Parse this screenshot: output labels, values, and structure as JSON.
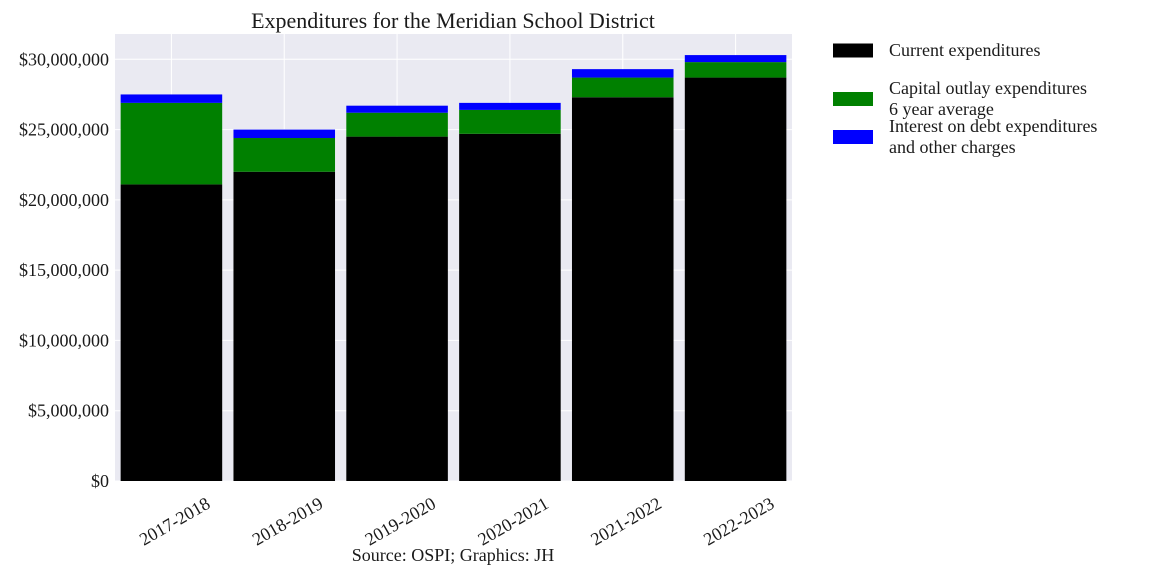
{
  "chart_data": {
    "type": "bar",
    "stacked": true,
    "title": "Expenditures for the Meridian School District",
    "caption": "Source: OSPI; Graphics: JH",
    "xlabel": "",
    "ylabel": "",
    "ylim": [
      0,
      30000000
    ],
    "y_ticks": [
      0,
      5000000,
      10000000,
      15000000,
      20000000,
      25000000,
      30000000
    ],
    "y_tick_labels": [
      "$0",
      "$5,000,000",
      "$10,000,000",
      "$15,000,000",
      "$20,000,000",
      "$25,000,000",
      "$30,000,000"
    ],
    "categories": [
      "2017-2018",
      "2018-2019",
      "2019-2020",
      "2020-2021",
      "2021-2022",
      "2022-2023"
    ],
    "grid": true,
    "legend_position": "outside-top-right",
    "colors": {
      "background": "#eaeaf2",
      "grid": "#ffffff"
    },
    "series": [
      {
        "name": "Current expenditures",
        "legend_lines": [
          "Current expenditures"
        ],
        "color": "#000000",
        "values": [
          21100000,
          22000000,
          24500000,
          24700000,
          27300000,
          28700000
        ]
      },
      {
        "name": "Capital outlay expenditures 6 year average",
        "legend_lines": [
          "Capital outlay expenditures",
          "6 year average"
        ],
        "color": "#008000",
        "values": [
          5800000,
          2400000,
          1700000,
          1700000,
          1400000,
          1100000
        ]
      },
      {
        "name": "Interest on debt expenditures and other charges",
        "legend_lines": [
          "Interest on debt expenditures",
          "and other charges"
        ],
        "color": "#0000ff",
        "values": [
          600000,
          600000,
          500000,
          500000,
          600000,
          500000
        ]
      }
    ]
  }
}
